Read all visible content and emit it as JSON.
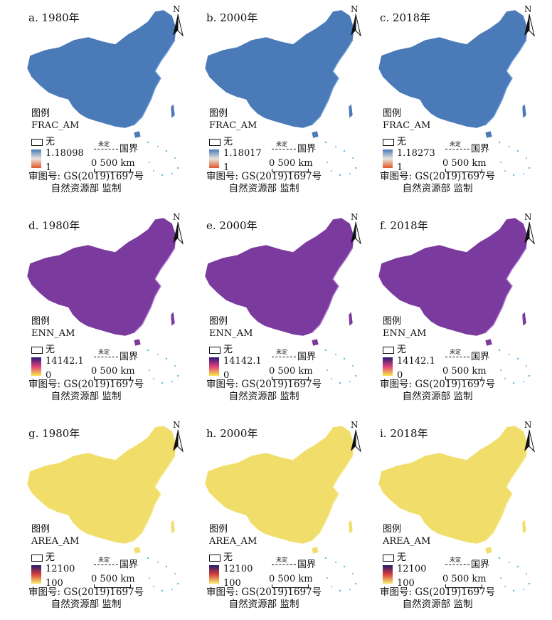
{
  "legend_title": "图例",
  "no_data_label": "无",
  "undetermined_label": "未定",
  "border_label": "国界",
  "scale_label": "0 500 km",
  "approval_line1": "审图号: GS(2019)1697号",
  "approval_line2": "自然资源部 监制",
  "north_label": "N",
  "panels": [
    {
      "title": "a. 1980年",
      "metric": "FRAC_AM",
      "max": "1.18098",
      "min": "1",
      "theme": "frac"
    },
    {
      "title": "b. 2000年",
      "metric": "FRAC_AM",
      "max": "1.18017",
      "min": "1",
      "theme": "frac"
    },
    {
      "title": "c. 2018年",
      "metric": "FRAC_AM",
      "max": "1.18273",
      "min": "1",
      "theme": "frac"
    },
    {
      "title": "d. 1980年",
      "metric": "ENN_AM",
      "max": "14142.1",
      "min": "0",
      "theme": "enn"
    },
    {
      "title": "e. 2000年",
      "metric": "ENN_AM",
      "max": "14142.1",
      "min": "0",
      "theme": "enn"
    },
    {
      "title": "f. 2018年",
      "metric": "ENN_AM",
      "max": "14142.1",
      "min": "0",
      "theme": "enn"
    },
    {
      "title": "g. 1980年",
      "metric": "AREA_AM",
      "max": "12100",
      "min": "100",
      "theme": "area"
    },
    {
      "title": "h. 2000年",
      "metric": "AREA_AM",
      "max": "12100",
      "min": "100",
      "theme": "area"
    },
    {
      "title": "i. 2018年",
      "metric": "AREA_AM",
      "max": "12100",
      "min": "100",
      "theme": "area"
    }
  ],
  "themes": {
    "frac": {
      "fill": "#4a7ab8",
      "edge": "#6fa0d6",
      "ramp_top": "#4a7ab8",
      "ramp_mid": "#e8e4dc",
      "ramp_bottom": "#e05a2a"
    },
    "enn": {
      "fill": "#7a3a9e",
      "edge": "#b77fd0",
      "ramp_top": "#2a1a7a",
      "ramp_mid": "#e0407a",
      "ramp_bottom": "#f8e84a"
    },
    "area": {
      "fill": "#f1de6a",
      "edge": "#f6ec9a",
      "ramp_top": "#231a6e",
      "ramp_mid": "#d8403a",
      "ramp_bottom": "#f7ef70"
    }
  }
}
